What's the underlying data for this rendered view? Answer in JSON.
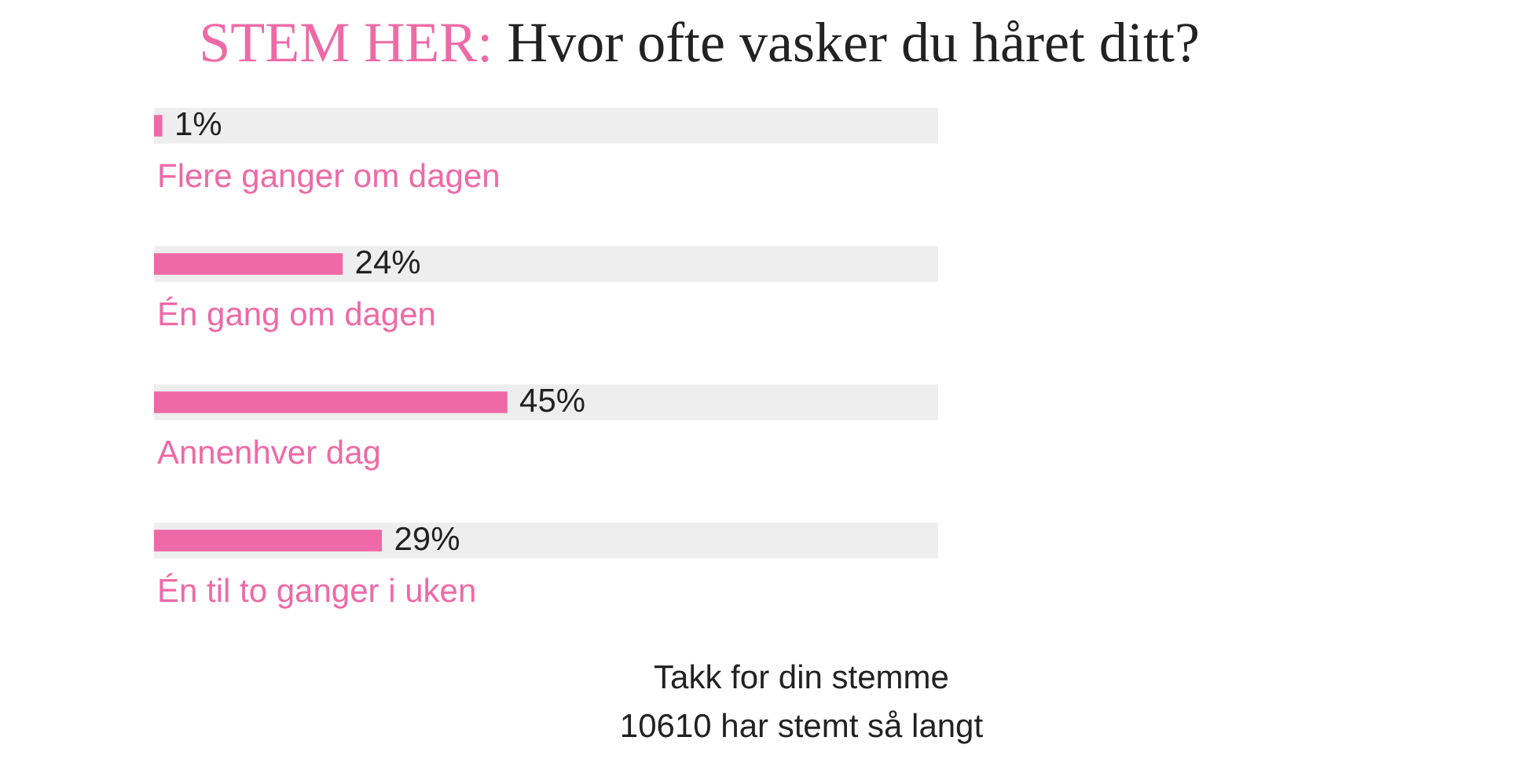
{
  "chart_data": {
    "type": "bar",
    "orientation": "horizontal",
    "title": "STEM HER: Hvor ofte vasker du håret ditt?",
    "categories": [
      "Flere ganger om dagen",
      "Én gang om dagen",
      "Annenhver dag",
      "Én til to ganger i uken"
    ],
    "series": [
      {
        "color": "#eeeeee",
        "values": [
          100,
          100,
          100,
          100
        ]
      },
      {
        "color": "#ee6aa7",
        "values": [
          1,
          24,
          45,
          29
        ],
        "value_labels": [
          "1%",
          "24%",
          "45%",
          "29%"
        ]
      }
    ],
    "xlim": [
      0,
      100
    ],
    "annotations": [
      "Takk for din stemme",
      "10610 har stemt så langt"
    ]
  }
}
